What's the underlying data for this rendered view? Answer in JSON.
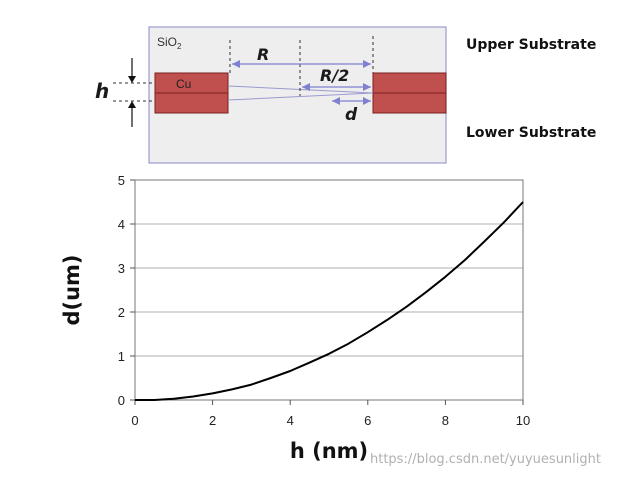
{
  "diagram": {
    "sio2_label": "SiO",
    "sio2_sub": "2",
    "cu_label": "Cu",
    "h_label": "h",
    "R_label": "R",
    "R2_label": "R/2",
    "d_label": "d",
    "upper_label": "Upper Substrate",
    "lower_label": "Lower Substrate",
    "colors": {
      "oxide_fill": "#eeeeee",
      "oxide_border": "#9a9ad0",
      "cu_fill": "#c0504d",
      "cu_border": "#7a2020",
      "dim_line": "#8080d0"
    }
  },
  "chart_data": {
    "type": "line",
    "xlabel": "h (nm)",
    "ylabel": "d(um)",
    "xlim": [
      0,
      10
    ],
    "ylim": [
      0,
      5
    ],
    "xticks": [
      0,
      2,
      4,
      6,
      8,
      10
    ],
    "yticks": [
      0,
      1,
      2,
      3,
      4,
      5
    ],
    "grid": "horizontal",
    "series": [
      {
        "x": [
          0.5,
          1,
          1.5,
          2,
          2.5,
          3,
          3.5,
          4,
          4.5,
          5,
          5.5,
          6,
          6.5,
          7,
          7.5,
          8,
          8.5,
          9,
          9.5,
          10
        ],
        "y": [
          0,
          0.03,
          0.08,
          0.15,
          0.24,
          0.35,
          0.5,
          0.66,
          0.85,
          1.05,
          1.28,
          1.54,
          1.82,
          2.12,
          2.45,
          2.8,
          3.18,
          3.6,
          4.03,
          4.5
        ],
        "color": "#000000"
      }
    ]
  },
  "watermark": "https://blog.csdn.net/yuyuesunlight"
}
